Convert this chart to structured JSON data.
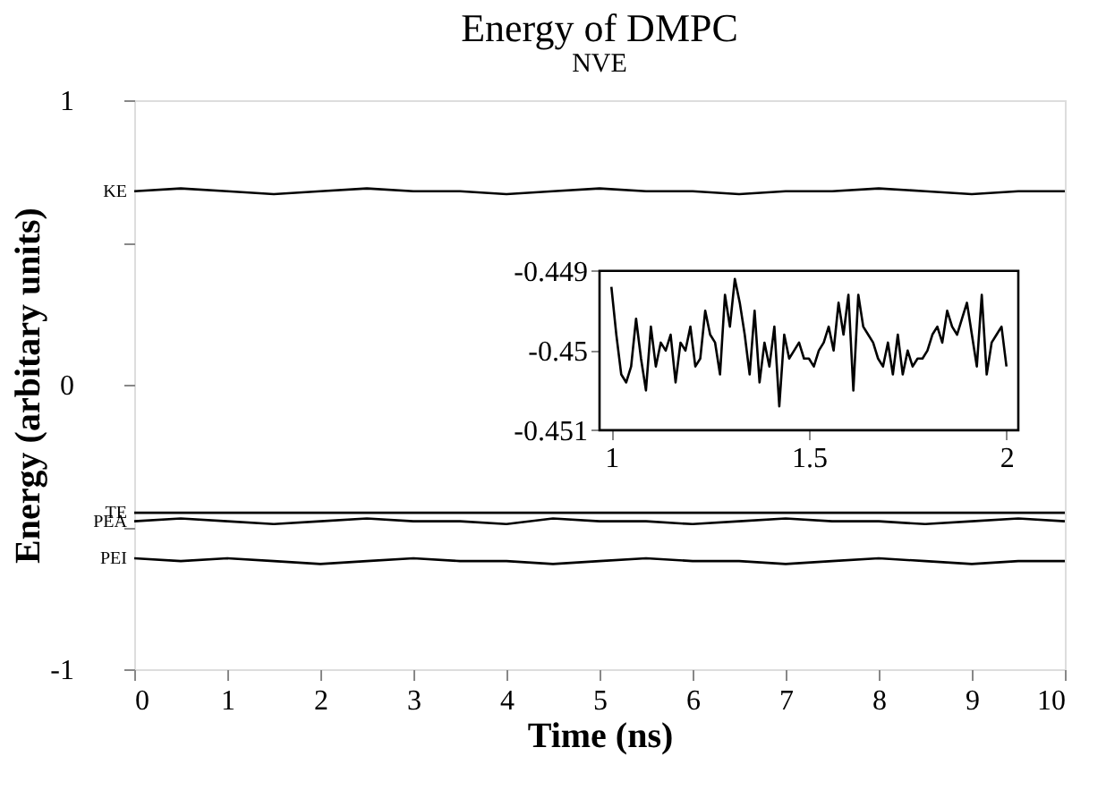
{
  "chart_data": [
    {
      "type": "line",
      "title": "Energy of DMPC",
      "subtitle": "NVE",
      "xlabel": "Time (ns)",
      "ylabel": "Energy (arbitary units)",
      "xlim": [
        0,
        10
      ],
      "xticks": [
        0,
        1,
        2,
        3,
        4,
        5,
        6,
        7,
        8,
        9,
        10
      ],
      "ylim": [
        -1,
        1
      ],
      "yticks": [
        -1,
        {
          "value": -0.5,
          "label": null
        },
        0,
        {
          "value": 0.5,
          "label": null
        },
        1
      ],
      "grid": false,
      "marker": "none",
      "line_style": "solid",
      "series": [
        {
          "name": "KE",
          "color": "#000000",
          "x": [
            0,
            0.5,
            1,
            1.5,
            2,
            2.5,
            3,
            3.5,
            4,
            4.5,
            5,
            5.5,
            6,
            6.5,
            7,
            7.5,
            8,
            8.5,
            9,
            9.5,
            10
          ],
          "values": [
            0.68,
            0.69,
            0.68,
            0.67,
            0.68,
            0.69,
            0.68,
            0.68,
            0.67,
            0.68,
            0.69,
            0.68,
            0.68,
            0.67,
            0.68,
            0.68,
            0.69,
            0.68,
            0.67,
            0.68,
            0.68
          ]
        },
        {
          "name": "TE",
          "color": "#000000",
          "x": [
            0,
            10
          ],
          "values": [
            -0.45,
            -0.45
          ]
        },
        {
          "name": "PEA",
          "color": "#000000",
          "x": [
            0,
            0.5,
            1,
            1.5,
            2,
            2.5,
            3,
            3.5,
            4,
            4.5,
            5,
            5.5,
            6,
            6.5,
            7,
            7.5,
            8,
            8.5,
            9,
            9.5,
            10
          ],
          "values": [
            -0.48,
            -0.47,
            -0.48,
            -0.49,
            -0.48,
            -0.47,
            -0.48,
            -0.48,
            -0.49,
            -0.47,
            -0.48,
            -0.48,
            -0.49,
            -0.48,
            -0.47,
            -0.48,
            -0.48,
            -0.49,
            -0.48,
            -0.47,
            -0.48
          ]
        },
        {
          "name": "PEI",
          "color": "#000000",
          "x": [
            0,
            0.5,
            1,
            1.5,
            2,
            2.5,
            3,
            3.5,
            4,
            4.5,
            5,
            5.5,
            6,
            6.5,
            7,
            7.5,
            8,
            8.5,
            9,
            9.5,
            10
          ],
          "values": [
            -0.61,
            -0.62,
            -0.61,
            -0.62,
            -0.63,
            -0.62,
            -0.61,
            -0.62,
            -0.62,
            -0.63,
            -0.62,
            -0.61,
            -0.62,
            -0.62,
            -0.63,
            -0.62,
            -0.61,
            -0.62,
            -0.63,
            -0.62,
            -0.62
          ]
        }
      ]
    },
    {
      "type": "line",
      "xlim": [
        0.97,
        2.03
      ],
      "xticks": [
        1,
        1.5,
        2
      ],
      "ylim": [
        -0.451,
        -0.449
      ],
      "yticks": [
        -0.451,
        -0.45,
        -0.449
      ],
      "grid": false,
      "marker": "none",
      "line_style": "solid",
      "series": [
        {
          "color": "#000000",
          "x": [
            1,
            1.0125,
            1.025,
            1.0375,
            1.05,
            1.0625,
            1.075,
            1.0875,
            1.1,
            1.1125,
            1.125,
            1.1375,
            1.15,
            1.1625,
            1.175,
            1.1875,
            1.2,
            1.2125,
            1.225,
            1.2375,
            1.25,
            1.2625,
            1.275,
            1.2875,
            1.3,
            1.3125,
            1.325,
            1.3375,
            1.35,
            1.3625,
            1.375,
            1.3875,
            1.4,
            1.4125,
            1.425,
            1.4375,
            1.45,
            1.4625,
            1.475,
            1.4875,
            1.5,
            1.5125,
            1.525,
            1.5375,
            1.55,
            1.5625,
            1.575,
            1.5875,
            1.6,
            1.6125,
            1.625,
            1.6375,
            1.65,
            1.6625,
            1.675,
            1.6875,
            1.7,
            1.7125,
            1.725,
            1.7375,
            1.75,
            1.7625,
            1.775,
            1.7875,
            1.8,
            1.8125,
            1.825,
            1.8375,
            1.85,
            1.8625,
            1.875,
            1.8875,
            1.9,
            1.9125,
            1.925,
            1.9375,
            1.95,
            1.9625,
            1.975,
            1.9875,
            2
          ],
          "values": [
            -0.4492,
            -0.4498,
            -0.4503,
            -0.4504,
            -0.4502,
            -0.4496,
            -0.4501,
            -0.4505,
            -0.4497,
            -0.4502,
            -0.4499,
            -0.45,
            -0.4498,
            -0.4504,
            -0.4499,
            -0.45,
            -0.4497,
            -0.4502,
            -0.4501,
            -0.4495,
            -0.4498,
            -0.4499,
            -0.4503,
            -0.4493,
            -0.4497,
            -0.4491,
            -0.4494,
            -0.4498,
            -0.4503,
            -0.4495,
            -0.4504,
            -0.4499,
            -0.4502,
            -0.4497,
            -0.4507,
            -0.4498,
            -0.4501,
            -0.45,
            -0.4499,
            -0.4501,
            -0.4501,
            -0.4502,
            -0.45,
            -0.4499,
            -0.4497,
            -0.45,
            -0.4494,
            -0.4498,
            -0.4493,
            -0.4505,
            -0.4493,
            -0.4497,
            -0.4498,
            -0.4499,
            -0.4501,
            -0.4502,
            -0.4499,
            -0.4503,
            -0.4498,
            -0.4503,
            -0.45,
            -0.4502,
            -0.4501,
            -0.4501,
            -0.45,
            -0.4498,
            -0.4497,
            -0.4499,
            -0.4495,
            -0.4497,
            -0.4498,
            -0.4496,
            -0.4494,
            -0.4498,
            -0.4502,
            -0.4493,
            -0.4503,
            -0.4499,
            -0.4498,
            -0.4497,
            -0.4502
          ]
        }
      ]
    }
  ]
}
